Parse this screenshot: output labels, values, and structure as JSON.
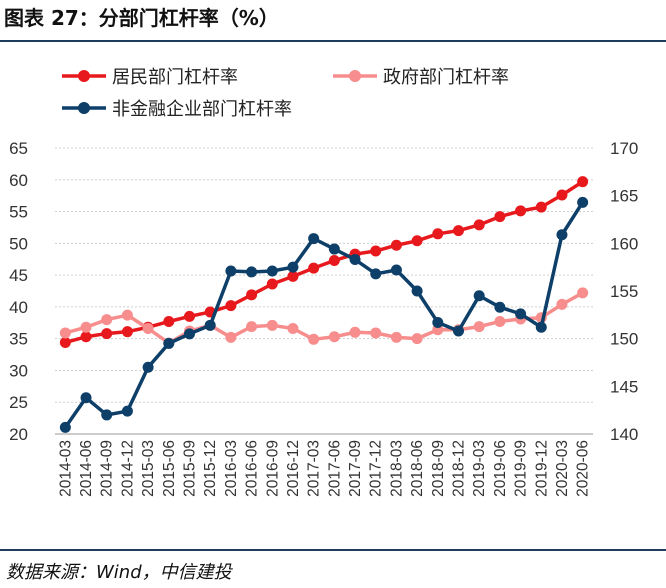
{
  "figure": {
    "title": "图表 27：分部门杠杆率（%）",
    "source": "数据来源：Wind，中信建投"
  },
  "chart_data": {
    "type": "line",
    "title": "",
    "xlabel": "",
    "ylabel": "",
    "y2label": "",
    "ylim": [
      20,
      65
    ],
    "y_ticks": [
      20,
      25,
      30,
      35,
      40,
      45,
      50,
      55,
      60,
      65
    ],
    "y2lim": [
      140,
      170
    ],
    "y2_ticks": [
      140,
      145,
      150,
      155,
      160,
      165,
      170
    ],
    "grid": true,
    "legend_position": "top",
    "x": [
      "2014-03",
      "2014-06",
      "2014-09",
      "2014-12",
      "2015-03",
      "2015-06",
      "2015-09",
      "2015-12",
      "2016-03",
      "2016-06",
      "2016-09",
      "2016-12",
      "2017-03",
      "2017-06",
      "2017-09",
      "2017-12",
      "2018-03",
      "2018-06",
      "2018-09",
      "2018-12",
      "2019-03",
      "2019-06",
      "2019-09",
      "2019-12",
      "2020-03",
      "2020-06"
    ],
    "series": [
      {
        "name": "居民部门杠杆率",
        "axis": "left",
        "color": "#e8191d",
        "values": [
          34.4,
          35.3,
          35.8,
          36.1,
          36.8,
          37.7,
          38.5,
          39.2,
          40.2,
          41.9,
          43.6,
          44.8,
          46.1,
          47.3,
          48.3,
          48.8,
          49.7,
          50.4,
          51.5,
          52.0,
          52.9,
          54.2,
          55.1,
          55.7,
          57.6,
          59.7
        ]
      },
      {
        "name": "政府部门杠杆率",
        "axis": "left",
        "color": "#f78d8d",
        "values": [
          35.9,
          36.8,
          38.0,
          38.7,
          36.6,
          34.3,
          36.2,
          37.1,
          35.2,
          36.9,
          37.1,
          36.6,
          34.9,
          35.3,
          36.0,
          35.9,
          35.2,
          35.0,
          36.4,
          36.4,
          36.9,
          37.7,
          38.1,
          38.3,
          40.4,
          42.2
        ]
      },
      {
        "name": "非金融企业部门杠杆率",
        "axis": "right",
        "color": "#0d3f69",
        "values": [
          140.7,
          143.8,
          142.0,
          142.4,
          147.0,
          149.5,
          150.5,
          151.4,
          157.1,
          157.0,
          157.1,
          157.5,
          160.5,
          159.4,
          158.3,
          156.8,
          157.2,
          155.0,
          151.7,
          150.8,
          154.5,
          153.3,
          152.6,
          151.2,
          160.9,
          164.3
        ]
      }
    ]
  }
}
